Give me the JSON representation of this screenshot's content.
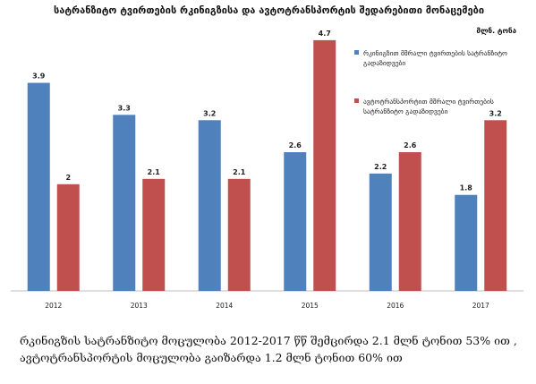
{
  "chart_data": {
    "type": "bar",
    "title": "სატრანზიტო ტვირთების რკინიგზისა და ავტოტრანსპორტის შედარებითი მონაცემები",
    "unit_label": "მლნ. ტონა",
    "categories": [
      "2012",
      "2013",
      "2014",
      "2015",
      "2016",
      "2017"
    ],
    "series": [
      {
        "name": "რკინიგზით მშრალი ტვირთების სატრანზიტო გადაზიდვები",
        "color": "#4f81bd",
        "values": [
          3.9,
          3.3,
          3.2,
          2.6,
          2.2,
          1.8
        ]
      },
      {
        "name": "ავტოტრანსპორტით მშრალი ტვირთების სატრანზიტო გადაზიდვები",
        "color": "#c0504d",
        "values": [
          2,
          2.1,
          2.1,
          4.7,
          2.6,
          3.2
        ]
      }
    ],
    "data_labels": [
      [
        "3.9",
        "3.3",
        "3.2",
        "2.6",
        "2.2",
        "1.8"
      ],
      [
        "2",
        "2.1",
        "2.1",
        "4.7",
        "2.6",
        "3.2"
      ]
    ],
    "ylim": [
      0,
      5
    ],
    "grid": false,
    "legend_position": "top-right"
  },
  "caption": "რკინიგზის სატრანზიტო მოცულობა 2012-2017 წწ შემცირდა 2.1 მლნ ტონით 53% ით , ავტოტრანსპორტის მოცულობა გაიზარდა 1.2 მლნ ტონით 60% ით"
}
